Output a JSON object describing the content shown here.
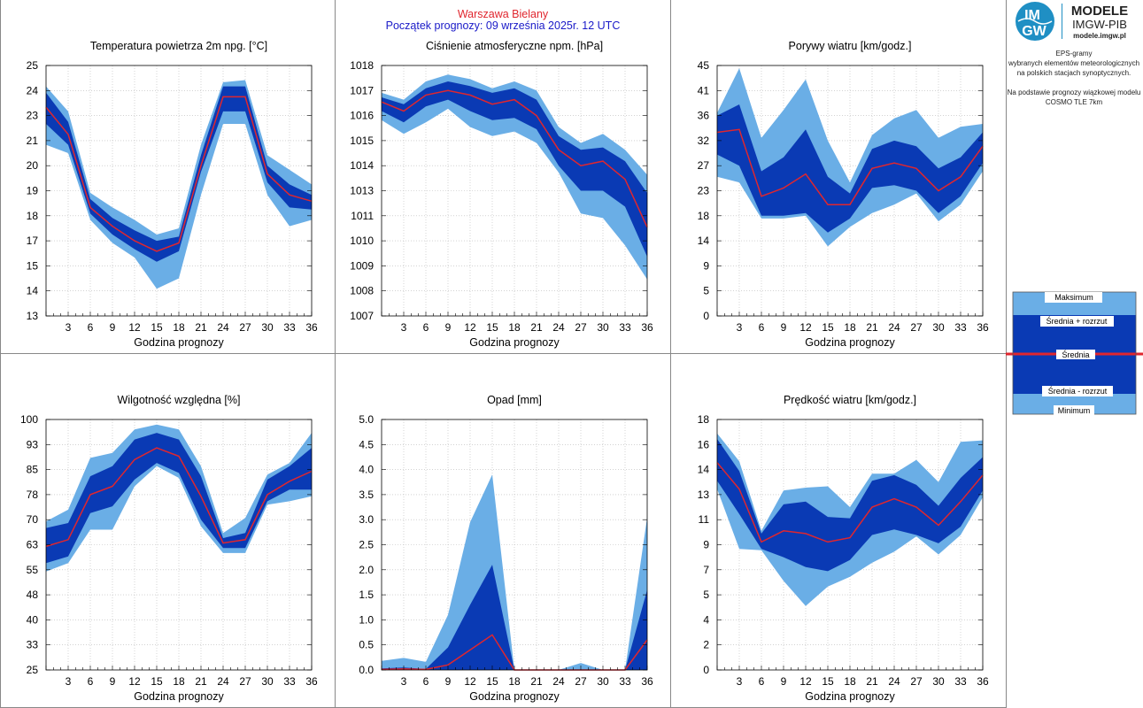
{
  "header": {
    "station": "Warszawa Bielany",
    "forecast_start": "Początek prognozy: 09 września 2025r. 12 UTC"
  },
  "logo": {
    "badge_top": "IM",
    "badge_bottom": "GW",
    "title": "MODELE",
    "subtitle": "IMGW-PIB",
    "url": "modele.imgw.pl"
  },
  "info": {
    "lines": [
      "EPS-gramy",
      "wybranych elementów meteorologicznych",
      "na polskich stacjach  synoptycznych.",
      "",
      "Na podstawie prognozy wiązkowej modelu",
      "COSMO TLE 7km"
    ]
  },
  "legend": {
    "items": [
      "Maksimum",
      "Średnia + rozrzut",
      "Średnia",
      "Średnia - rozrzut",
      "Minimum"
    ]
  },
  "colors": {
    "outer": "#6aaee6",
    "inner": "#0a3ab4",
    "mean": "#e0262e",
    "grid": "#b8b8b8",
    "header_station": "#e0262e",
    "header_start": "#1a1ac8"
  },
  "chart_data": [
    {
      "id": "temp",
      "type": "area",
      "title": "Temperatura powietrza 2m npg. [°C]",
      "xlabel": "Godzina prognozy",
      "x": [
        0,
        3,
        6,
        9,
        12,
        15,
        18,
        21,
        24,
        27,
        30,
        33,
        36
      ],
      "xticks": [
        "3",
        "6",
        "9",
        "12",
        "15",
        "18",
        "21",
        "24",
        "27",
        "30",
        "33",
        "36"
      ],
      "yticks": [
        "13",
        "14",
        "15",
        "17",
        "18",
        "19",
        "20",
        "21",
        "23",
        "24",
        "25"
      ],
      "ylim": [
        13,
        25
      ],
      "max": [
        24.0,
        22.8,
        18.9,
        18.2,
        17.6,
        16.9,
        17.2,
        21.2,
        24.2,
        24.3,
        20.7,
        20.0,
        19.3
      ],
      "plus": [
        23.7,
        22.3,
        18.6,
        17.7,
        17.1,
        16.6,
        16.8,
        20.7,
        24.0,
        24.0,
        20.2,
        19.3,
        18.8
      ],
      "mean": [
        23.0,
        21.7,
        18.2,
        17.3,
        16.6,
        16.1,
        16.5,
        20.2,
        23.5,
        23.5,
        19.8,
        18.8,
        18.5
      ],
      "minus": [
        22.2,
        21.2,
        17.9,
        16.9,
        16.2,
        15.6,
        16.1,
        19.9,
        22.8,
        22.8,
        19.4,
        18.2,
        18.1
      ],
      "min": [
        21.2,
        20.8,
        17.6,
        16.5,
        15.8,
        14.3,
        14.8,
        18.8,
        22.2,
        22.2,
        18.8,
        17.3,
        17.6
      ]
    },
    {
      "id": "pressure",
      "type": "area",
      "title": "Ciśnienie atmosferyczne npm. [hPa]",
      "xlabel": "Godzina prognozy",
      "x": [
        0,
        3,
        6,
        9,
        12,
        15,
        18,
        21,
        24,
        27,
        30,
        33,
        36
      ],
      "xticks": [
        "3",
        "6",
        "9",
        "12",
        "15",
        "18",
        "21",
        "24",
        "27",
        "30",
        "33",
        "36"
      ],
      "yticks": [
        "1007",
        "1008",
        "1009",
        "1010",
        "1011",
        "1013",
        "1014",
        "1015",
        "1016",
        "1017",
        "1018"
      ],
      "ylim": [
        1007,
        1018
      ],
      "max": [
        1016.8,
        1016.5,
        1017.3,
        1017.6,
        1017.4,
        1017.0,
        1017.3,
        1016.9,
        1015.3,
        1014.6,
        1015.0,
        1014.3,
        1013.2
      ],
      "plus": [
        1016.6,
        1016.3,
        1017.0,
        1017.3,
        1017.1,
        1016.8,
        1017.0,
        1016.5,
        1014.9,
        1014.3,
        1014.4,
        1013.8,
        1012.4
      ],
      "mean": [
        1016.4,
        1016.0,
        1016.7,
        1016.9,
        1016.7,
        1016.3,
        1016.5,
        1015.8,
        1014.3,
        1013.6,
        1013.8,
        1013.0,
        1010.9
      ],
      "minus": [
        1016.0,
        1015.5,
        1016.2,
        1016.5,
        1016.0,
        1015.6,
        1015.7,
        1015.2,
        1013.6,
        1012.5,
        1012.5,
        1011.8,
        1009.6
      ],
      "min": [
        1015.6,
        1015.0,
        1015.5,
        1016.1,
        1015.3,
        1014.9,
        1015.1,
        1014.6,
        1013.3,
        1011.5,
        1011.3,
        1010.1,
        1008.6
      ]
    },
    {
      "id": "gusts",
      "type": "area",
      "title": "Porywy wiatru [km/godz.]",
      "xlabel": "Godzina prognozy",
      "x": [
        0,
        3,
        6,
        9,
        12,
        15,
        18,
        21,
        24,
        27,
        30,
        33,
        36
      ],
      "xticks": [
        "3",
        "6",
        "9",
        "12",
        "15",
        "18",
        "21",
        "24",
        "27",
        "30",
        "33",
        "36"
      ],
      "yticks": [
        "0",
        "5",
        "9",
        "14",
        "18",
        "23",
        "27",
        "32",
        "36",
        "41",
        "45"
      ],
      "ylim": [
        0,
        45
      ],
      "max": [
        36.5,
        44.5,
        32.0,
        37.0,
        42.5,
        31.5,
        24.0,
        32.5,
        35.5,
        37.0,
        32.0,
        34.0,
        34.5
      ],
      "plus": [
        36.0,
        38.0,
        26.0,
        28.5,
        33.5,
        25.0,
        22.0,
        30.0,
        31.5,
        30.5,
        26.5,
        28.5,
        33.0
      ],
      "mean": [
        33.0,
        33.5,
        21.5,
        23.0,
        25.5,
        20.0,
        20.0,
        26.5,
        27.5,
        26.5,
        22.5,
        25.0,
        30.5
      ],
      "minus": [
        29.0,
        27.0,
        18.0,
        18.0,
        18.5,
        15.0,
        17.5,
        23.0,
        23.5,
        22.5,
        18.5,
        21.5,
        27.5
      ],
      "min": [
        25.0,
        24.0,
        17.5,
        17.5,
        18.0,
        12.5,
        16.0,
        18.5,
        20.0,
        22.0,
        17.0,
        20.0,
        26.0
      ]
    },
    {
      "id": "humidity",
      "type": "area",
      "title": "Wilgotność względna [%]",
      "xlabel": "Godzina prognozy",
      "x": [
        0,
        3,
        6,
        9,
        12,
        15,
        18,
        21,
        24,
        27,
        30,
        33,
        36
      ],
      "xticks": [
        "3",
        "6",
        "9",
        "12",
        "15",
        "18",
        "21",
        "24",
        "27",
        "30",
        "33",
        "36"
      ],
      "yticks": [
        "25",
        "33",
        "40",
        "48",
        "55",
        "63",
        "70",
        "78",
        "85",
        "93",
        "100"
      ],
      "ylim": [
        25,
        100
      ],
      "max": [
        69.5,
        73.0,
        88.5,
        90.0,
        97.0,
        98.5,
        97.0,
        86.0,
        66.0,
        70.5,
        83.5,
        87.0,
        96.0
      ],
      "plus": [
        67.5,
        69.0,
        83.0,
        86.0,
        94.0,
        96.0,
        94.0,
        83.0,
        64.5,
        66.0,
        82.0,
        86.0,
        91.5
      ],
      "mean": [
        62.0,
        64.0,
        77.5,
        80.0,
        88.0,
        91.5,
        89.0,
        77.0,
        63.0,
        64.0,
        77.5,
        81.5,
        84.5
      ],
      "minus": [
        57.0,
        59.0,
        72.0,
        74.0,
        82.0,
        87.0,
        84.0,
        70.0,
        61.5,
        61.5,
        75.5,
        79.0,
        79.0
      ],
      "min": [
        54.5,
        57.0,
        67.0,
        67.0,
        80.0,
        86.0,
        82.5,
        68.0,
        60.0,
        60.0,
        74.5,
        75.5,
        77.0
      ]
    },
    {
      "id": "precip",
      "type": "area",
      "title": "Opad [mm]",
      "xlabel": "Godzina prognozy",
      "x": [
        0,
        3,
        6,
        9,
        12,
        15,
        18,
        21,
        24,
        27,
        30,
        33,
        36
      ],
      "xticks": [
        "3",
        "6",
        "9",
        "12",
        "15",
        "18",
        "21",
        "24",
        "27",
        "30",
        "33",
        "36"
      ],
      "yticks": [
        "0.0",
        "0.5",
        "1.0",
        "1.5",
        "2.0",
        "2.5",
        "3.0",
        "3.5",
        "4.0",
        "4.5",
        "5.0"
      ],
      "ylim": [
        0,
        5
      ],
      "max": [
        0.18,
        0.24,
        0.16,
        1.1,
        2.95,
        3.9,
        0.0,
        0.0,
        0.0,
        0.14,
        0.0,
        0.0,
        3.05
      ],
      "plus": [
        0.03,
        0.05,
        0.02,
        0.45,
        1.3,
        2.1,
        0.0,
        0.0,
        0.0,
        0.0,
        0.0,
        0.0,
        1.6
      ],
      "mean": [
        0.01,
        0.02,
        0.01,
        0.1,
        0.4,
        0.7,
        0.0,
        0.0,
        0.0,
        0.0,
        0.0,
        0.0,
        0.6
      ],
      "minus": [
        0.0,
        0.0,
        0.0,
        0.0,
        0.0,
        0.0,
        0.0,
        0.0,
        0.0,
        0.0,
        0.0,
        0.0,
        0.0
      ],
      "min": [
        0.0,
        0.0,
        0.0,
        0.0,
        0.0,
        0.0,
        0.0,
        0.0,
        0.0,
        0.0,
        0.0,
        0.0,
        0.0
      ]
    },
    {
      "id": "wind",
      "type": "area",
      "title": "Prędkość wiatru [km/godz.]",
      "xlabel": "Godzina prognozy",
      "x": [
        0,
        3,
        6,
        9,
        12,
        15,
        18,
        21,
        24,
        27,
        30,
        33,
        36
      ],
      "xticks": [
        "3",
        "6",
        "9",
        "12",
        "15",
        "18",
        "21",
        "24",
        "27",
        "30",
        "33",
        "36"
      ],
      "yticks": [
        "0",
        "2",
        "4",
        "5",
        "7",
        "9",
        "11",
        "13",
        "14",
        "16",
        "18"
      ],
      "ylim": [
        0,
        18
      ],
      "max": [
        17.0,
        15.0,
        10.0,
        12.9,
        13.1,
        13.2,
        11.7,
        14.1,
        14.1,
        15.1,
        13.5,
        16.4,
        16.5
      ],
      "plus": [
        16.6,
        14.3,
        9.8,
        11.9,
        12.1,
        11.0,
        10.9,
        13.6,
        14.0,
        13.3,
        11.8,
        13.8,
        15.3
      ],
      "mean": [
        14.9,
        13.0,
        9.2,
        10.0,
        9.8,
        9.2,
        9.5,
        11.7,
        12.3,
        11.7,
        10.4,
        12.1,
        14.0
      ],
      "minus": [
        13.6,
        11.2,
        8.7,
        8.1,
        7.4,
        7.1,
        7.9,
        9.7,
        10.1,
        9.7,
        9.1,
        10.3,
        12.9
      ],
      "min": [
        13.0,
        8.7,
        8.6,
        6.4,
        4.6,
        6.0,
        6.7,
        7.7,
        8.5,
        9.6,
        8.3,
        9.7,
        12.4
      ]
    }
  ]
}
